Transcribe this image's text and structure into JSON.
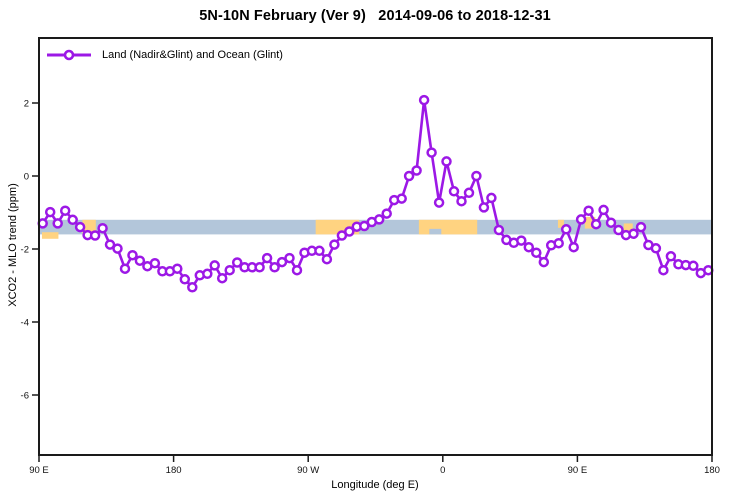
{
  "title": "5N-10N February (Ver 9)   2014-09-06 to 2018-12-31",
  "legend": {
    "label": "Land (Nadir&Glint) and Ocean (Glint)"
  },
  "colors": {
    "series_purple": "#9c18e6",
    "ocean_band_blue": "#b3c6da",
    "land_patch_orange": "#ffd381",
    "axis_black": "#1a1a1a"
  },
  "chart_data": {
    "type": "line",
    "title": "5N-10N February (Ver 9)   2014-09-06 to 2018-12-31",
    "xlabel": "Longitude (deg E)",
    "ylabel": "XCO2 - MLO trend (ppm)",
    "x_axis_span_deg": [
      90,
      540
    ],
    "grid": "off",
    "legend_position": "top-left-inside",
    "x_ticks": [
      {
        "deg": 90,
        "label": "90 E"
      },
      {
        "deg": 180,
        "label": "180"
      },
      {
        "deg": 270,
        "label": "90 W"
      },
      {
        "deg": 360,
        "label": "0"
      },
      {
        "deg": 450,
        "label": "90 E"
      },
      {
        "deg": 540,
        "label": "180"
      }
    ],
    "y_ticks": [
      {
        "value": 2,
        "label": "2"
      },
      {
        "value": 0,
        "label": "0"
      },
      {
        "value": -2,
        "label": "-2"
      },
      {
        "value": -4,
        "label": "-4"
      },
      {
        "value": -6,
        "label": "-6"
      }
    ],
    "band": {
      "meaning": "surface type strip (ocean vs land) along latitude band",
      "from_value": -1.2,
      "to_value": -1.6,
      "ocean_color": "#b3c6da",
      "land_color": "#ffd381",
      "land_patches": [
        {
          "from_deg": 92,
          "to_deg": 103,
          "extent": "below"
        },
        {
          "from_deg": 119,
          "to_deg": 128,
          "extent": "full"
        },
        {
          "from_deg": 275,
          "to_deg": 304,
          "extent": "full"
        },
        {
          "from_deg": 344,
          "to_deg": 383,
          "extent": "full"
        },
        {
          "from_deg": 437,
          "to_deg": 441,
          "extent": "upper"
        },
        {
          "from_deg": 455,
          "to_deg": 462,
          "extent": "upper_tall"
        },
        {
          "from_deg": 481,
          "to_deg": 487,
          "extent": "mid"
        }
      ],
      "water_notches": [
        {
          "from_deg": 351,
          "to_deg": 359
        }
      ]
    },
    "series": [
      {
        "name": "Land (Nadir&Glint) and Ocean (Glint)",
        "color": "#9c18e6",
        "marker": "open-circle",
        "x_deg": [
          92.5,
          97.5,
          102.5,
          107.5,
          112.5,
          117.5,
          122.5,
          127.5,
          132.5,
          137.5,
          142.5,
          147.5,
          152.5,
          157.5,
          162.5,
          167.5,
          172.5,
          177.5,
          182.5,
          187.5,
          192.5,
          197.5,
          202.5,
          207.5,
          212.5,
          217.5,
          222.5,
          227.5,
          232.5,
          237.5,
          242.5,
          247.5,
          252.5,
          257.5,
          262.5,
          267.5,
          272.5,
          277.5,
          282.5,
          287.5,
          292.5,
          297.5,
          302.5,
          307.5,
          312.5,
          317.5,
          322.5,
          327.5,
          332.5,
          337.5,
          342.5,
          347.5,
          352.5,
          357.5,
          362.5,
          367.5,
          372.5,
          377.5,
          382.5,
          387.5,
          392.5,
          397.5,
          402.5,
          407.5,
          412.5,
          417.5,
          422.5,
          427.5,
          432.5,
          437.5,
          442.5,
          447.5,
          452.5,
          457.5,
          462.5,
          467.5,
          472.5,
          477.5,
          482.5,
          487.5,
          492.5,
          497.5,
          502.5,
          507.5,
          512.5,
          517.5,
          522.5,
          527.5,
          532.5,
          537.5
        ],
        "values": [
          -1.3,
          -0.99,
          -1.3,
          -0.95,
          -1.2,
          -1.4,
          -1.62,
          -1.63,
          -1.43,
          -1.88,
          -1.99,
          -2.54,
          -2.17,
          -2.32,
          -2.47,
          -2.39,
          -2.61,
          -2.61,
          -2.54,
          -2.83,
          -3.05,
          -2.72,
          -2.68,
          -2.45,
          -2.8,
          -2.58,
          -2.37,
          -2.5,
          -2.5,
          -2.5,
          -2.25,
          -2.5,
          -2.36,
          -2.25,
          -2.58,
          -2.1,
          -2.05,
          -2.05,
          -2.28,
          -1.88,
          -1.63,
          -1.52,
          -1.39,
          -1.37,
          -1.26,
          -1.19,
          -1.03,
          -0.66,
          -0.62,
          0.0,
          0.15,
          2.08,
          0.64,
          -0.73,
          0.4,
          -0.42,
          -0.69,
          -0.46,
          0.0,
          -0.86,
          -0.6,
          -1.48,
          -1.75,
          -1.83,
          -1.77,
          -1.95,
          -2.1,
          -2.36,
          -1.9,
          -1.84,
          -1.46,
          -1.95,
          -1.19,
          -0.95,
          -1.32,
          -0.93,
          -1.28,
          -1.48,
          -1.62,
          -1.58,
          -1.4,
          -1.89,
          -1.98,
          -2.58,
          -2.2,
          -2.42,
          -2.44,
          -2.46,
          -2.66,
          -2.58
        ]
      }
    ]
  }
}
